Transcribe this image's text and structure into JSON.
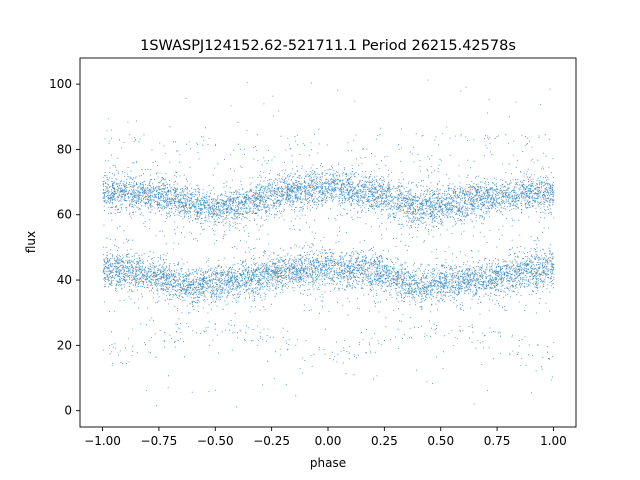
{
  "chart_data": {
    "type": "scatter",
    "title": "1SWASPJ124152.62-521711.1 Period 26215.42578s",
    "xlabel": "phase",
    "ylabel": "flux",
    "xlim": [
      -1.1,
      1.1
    ],
    "ylim": [
      -5,
      108
    ],
    "xticks": [
      -1.0,
      -0.75,
      -0.5,
      -0.25,
      0.0,
      0.25,
      0.5,
      0.75,
      1.0
    ],
    "xtick_labels": [
      "−1.00",
      "−0.75",
      "−0.50",
      "−0.25",
      "0.00",
      "0.25",
      "0.50",
      "0.75",
      "1.00"
    ],
    "yticks": [
      0,
      20,
      40,
      60,
      80,
      100
    ],
    "ytick_labels": [
      "0",
      "20",
      "40",
      "60",
      "80",
      "100"
    ],
    "grid": false,
    "legend": "none",
    "marker_color": "#1f77b4",
    "series": [
      {
        "phase_range": [
          -1.0,
          1.0
        ],
        "bands": [
          {
            "envelope_phase": [
              -1.0,
              -0.75,
              -0.6,
              -0.5,
              -0.25,
              0.0,
              0.25,
              0.4,
              0.5,
              0.75,
              1.0
            ],
            "envelope_flux_center": [
              67,
              66,
              63,
              62,
              66,
              69,
              66,
              62,
              63,
              66,
              67
            ],
            "flux_spread": 5
          },
          {
            "envelope_phase": [
              -1.0,
              -0.75,
              -0.6,
              -0.5,
              -0.25,
              0.0,
              0.25,
              0.4,
              0.5,
              0.75,
              1.0
            ],
            "envelope_flux_center": [
              44,
              41,
              38,
              39,
              42,
              44,
              42,
              38,
              39,
              41,
              44
            ],
            "flux_spread": 5
          }
        ],
        "outliers_flux_range": [
          0,
          103
        ]
      }
    ]
  }
}
